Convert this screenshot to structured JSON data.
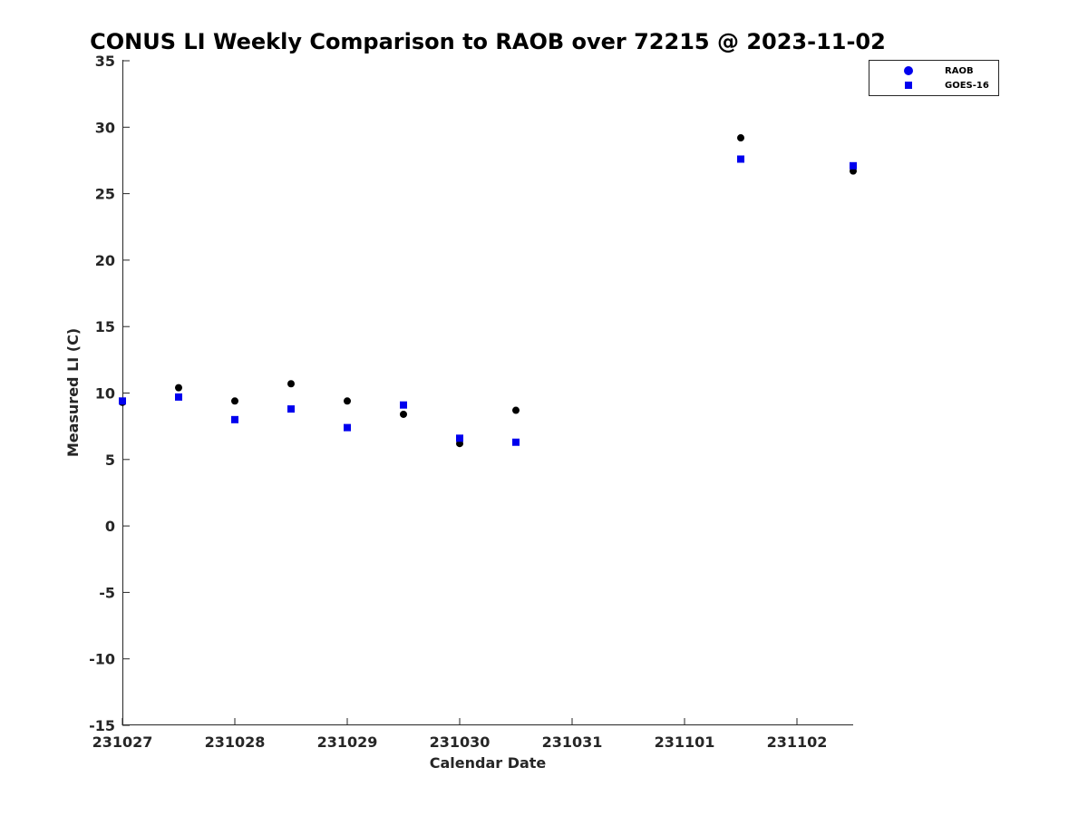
{
  "chart_data": {
    "type": "scatter",
    "title": "CONUS LI Weekly Comparison to RAOB over 72215 @ 2023-11-02",
    "xlabel": "Calendar Date",
    "ylabel": "Measured LI (C)",
    "x_tick_labels": [
      "231027",
      "231028",
      "231029",
      "231030",
      "231031",
      "231101",
      "231102"
    ],
    "y_ticks": [
      35,
      30,
      25,
      20,
      15,
      10,
      5,
      0,
      -5,
      -10,
      -15
    ],
    "ylim": [
      -15,
      35
    ],
    "xlim_days": [
      0,
      6.5
    ],
    "grid": false,
    "legend_position": "top-right",
    "colors": {
      "raob": "#000000",
      "goes": "#0000ee"
    },
    "series": [
      {
        "name": "RAOB",
        "marker": "circle",
        "color": "#000000",
        "legend_color": "#0000ee",
        "points": [
          {
            "x": 0.0,
            "y": 9.3
          },
          {
            "x": 0.5,
            "y": 10.4
          },
          {
            "x": 1.0,
            "y": 9.4
          },
          {
            "x": 1.5,
            "y": 10.7
          },
          {
            "x": 2.0,
            "y": 9.4
          },
          {
            "x": 2.5,
            "y": 8.4
          },
          {
            "x": 3.0,
            "y": 6.2
          },
          {
            "x": 3.5,
            "y": 8.7
          },
          {
            "x": 5.5,
            "y": 29.2
          },
          {
            "x": 6.5,
            "y": 26.7
          }
        ]
      },
      {
        "name": "GOES-16",
        "marker": "square",
        "color": "#0000ee",
        "points": [
          {
            "x": 0.0,
            "y": 9.4
          },
          {
            "x": 0.5,
            "y": 9.7
          },
          {
            "x": 1.0,
            "y": 8.0
          },
          {
            "x": 1.5,
            "y": 8.8
          },
          {
            "x": 2.0,
            "y": 7.4
          },
          {
            "x": 2.5,
            "y": 9.1
          },
          {
            "x": 3.0,
            "y": 6.6
          },
          {
            "x": 3.5,
            "y": 6.3
          },
          {
            "x": 5.5,
            "y": 27.6
          },
          {
            "x": 6.5,
            "y": 27.1
          }
        ]
      }
    ]
  }
}
